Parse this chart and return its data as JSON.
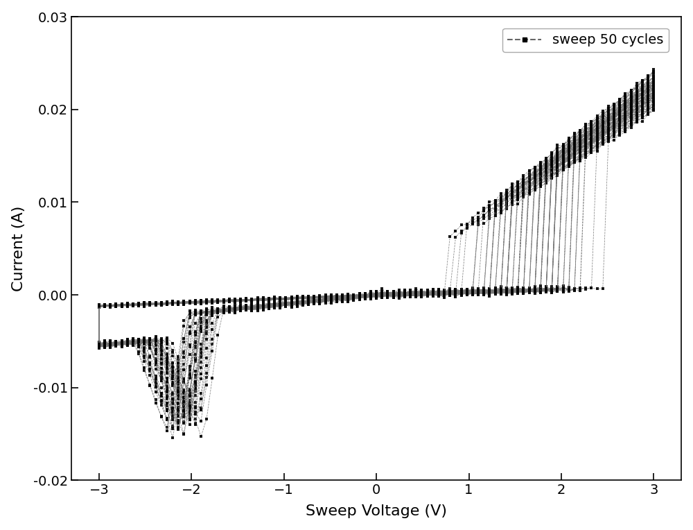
{
  "xlabel": "Sweep Voltage (V)",
  "ylabel": "Current (A)",
  "legend_label": "sweep 50 cycles",
  "xlim": [
    -3.3,
    3.3
  ],
  "ylim": [
    -0.02,
    0.03
  ],
  "yticks": [
    -0.02,
    -0.01,
    0.0,
    0.01,
    0.02,
    0.03
  ],
  "xticks": [
    -3,
    -2,
    -1,
    0,
    1,
    2,
    3
  ],
  "n_cycles": 50,
  "figsize": [
    10.0,
    7.64
  ],
  "dpi": 100,
  "xlabel_fontsize": 16,
  "ylabel_fontsize": 16,
  "tick_fontsize": 14,
  "legend_fontsize": 14,
  "line_color": "#777777",
  "marker_color": "#000000",
  "background_color": "#ffffff"
}
